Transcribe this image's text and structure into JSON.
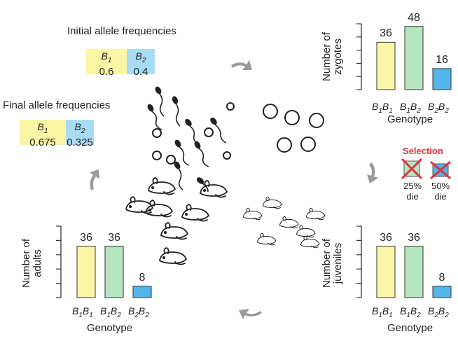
{
  "initial": {
    "title": "Initial allele frequencies",
    "b1_label": "B1",
    "b2_label": "B2",
    "b1_value": "0.6",
    "b2_value": "0.4"
  },
  "final": {
    "title": "Final allele frequencies",
    "b1_label": "B1",
    "b2_label": "B2",
    "b1_value": "0.675",
    "b2_value": "0.325"
  },
  "selection": {
    "title": "Selection",
    "b1b2_die": "25%",
    "b2b2_die": "50%",
    "die_word": "die"
  },
  "genotype_label": "Genotype",
  "genotypes": [
    "B1B1",
    "B1B2",
    "B2B2"
  ],
  "colors": {
    "b1": "#fbf5a6",
    "b2": "#a8dcf5",
    "green": "#b6e6c0",
    "blue": "#53b5e9",
    "red": "#e0313b",
    "arrow": "#9a9a9a"
  },
  "chart_data": [
    {
      "type": "bar",
      "ylabel": "Number of zygotes",
      "xlabel": "Genotype",
      "categories": [
        "B1B1",
        "B1B2",
        "B2B2"
      ],
      "values": [
        36,
        48,
        16
      ],
      "ylim": [
        0,
        50
      ]
    },
    {
      "type": "bar",
      "ylabel": "Number of juveniles",
      "xlabel": "Genotype",
      "categories": [
        "B1B1",
        "B1B2",
        "B2B2"
      ],
      "values": [
        36,
        36,
        8
      ],
      "ylim": [
        0,
        50
      ]
    },
    {
      "type": "bar",
      "ylabel": "Number of adults",
      "xlabel": "Genotype",
      "categories": [
        "B1B1",
        "B1B2",
        "B2B2"
      ],
      "values": [
        36,
        36,
        8
      ],
      "ylim": [
        0,
        50
      ]
    }
  ],
  "chart_labels": [
    {
      "ylabel_line1": "Number of",
      "ylabel_line2": "zygotes"
    },
    {
      "ylabel_line1": "Number of",
      "ylabel_line2": "juveniles"
    },
    {
      "ylabel_line1": "Number of",
      "ylabel_line2": "adults"
    }
  ]
}
